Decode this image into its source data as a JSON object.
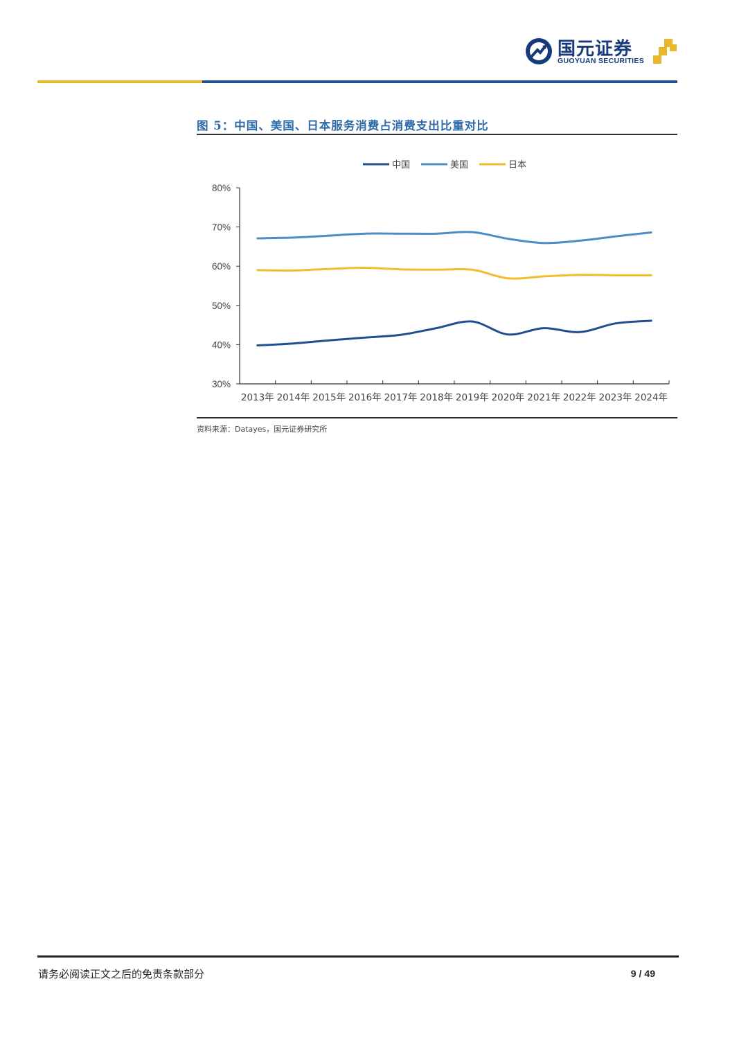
{
  "brand": {
    "name_cn": "国元证券",
    "name_en": "GUOYUAN SECURITIES",
    "colors": {
      "navy": "#173a7a",
      "gold": "#e8b72e",
      "rule_blue": "#1f4f8e"
    }
  },
  "figure": {
    "title": "图 5：中国、美国、日本服务消费占消费支出比重对比",
    "source": "资料来源：Datayes，国元证券研究所"
  },
  "chart_data": {
    "type": "line",
    "title": "图 5：中国、美国、日本服务消费占消费支出比重对比",
    "categories": [
      "2013年",
      "2014年",
      "2015年",
      "2016年",
      "2017年",
      "2018年",
      "2019年",
      "2020年",
      "2021年",
      "2022年",
      "2023年",
      "2024年"
    ],
    "series": [
      {
        "name": "中国",
        "color": "#1f4f8e",
        "values": [
          39.8,
          40.3,
          41.1,
          41.8,
          42.5,
          44.2,
          45.9,
          42.6,
          44.2,
          43.2,
          45.4,
          46.1
        ]
      },
      {
        "name": "美国",
        "color": "#4d8cc4",
        "values": [
          67.1,
          67.3,
          67.8,
          68.3,
          68.3,
          68.3,
          68.7,
          67.0,
          65.9,
          66.5,
          67.6,
          68.6
        ]
      },
      {
        "name": "日本",
        "color": "#f0bd2d",
        "values": [
          59.0,
          58.9,
          59.3,
          59.6,
          59.2,
          59.1,
          59.1,
          56.9,
          57.4,
          57.8,
          57.7,
          57.7
        ]
      }
    ],
    "yticks": [
      "80%",
      "70%",
      "60%",
      "50%",
      "40%",
      "30%"
    ],
    "ylim": [
      30,
      80
    ],
    "xlabel": "",
    "ylabel": "",
    "legend_position": "top-center"
  },
  "footer": {
    "disclaimer": "请务必阅读正文之后的免责条款部分",
    "page_current": "9",
    "page_separator": "/",
    "page_total": "49"
  }
}
